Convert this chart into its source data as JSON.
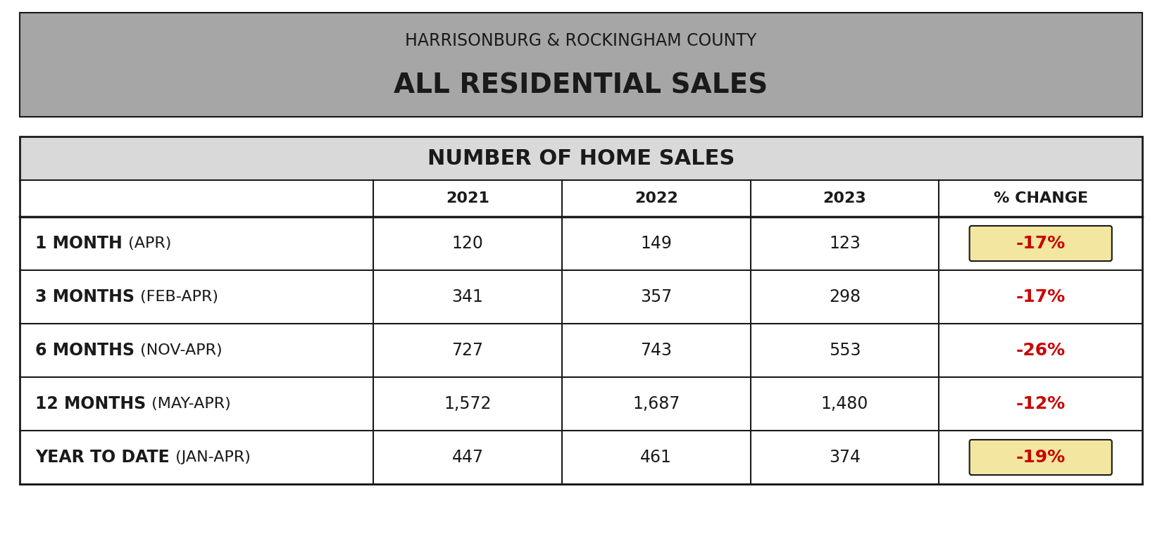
{
  "title_line1": "HARRISONBURG & ROCKINGHAM COUNTY",
  "title_line2": "ALL RESIDENTIAL SALES",
  "section_title": "NUMBER OF HOME SALES",
  "header_bg": "#a6a6a6",
  "section_header_bg": "#d9d9d9",
  "outer_bg": "#ffffff",
  "col_headers": [
    "",
    "2021",
    "2022",
    "2023",
    "% CHANGE"
  ],
  "rows": [
    {
      "label_bold": "1 MONTH",
      "label_normal": " (APR)",
      "v2021": "120",
      "v2022": "149",
      "v2023": "123",
      "change": "-17%",
      "highlight": true
    },
    {
      "label_bold": "3 MONTHS",
      "label_normal": " (FEB-APR)",
      "v2021": "341",
      "v2022": "357",
      "v2023": "298",
      "change": "-17%",
      "highlight": false
    },
    {
      "label_bold": "6 MONTHS",
      "label_normal": " (NOV-APR)",
      "v2021": "727",
      "v2022": "743",
      "v2023": "553",
      "change": "-26%",
      "highlight": false
    },
    {
      "label_bold": "12 MONTHS",
      "label_normal": " (MAY-APR)",
      "v2021": "1,572",
      "v2022": "1,687",
      "v2023": "1,480",
      "change": "-12%",
      "highlight": false
    },
    {
      "label_bold": "YEAR TO DATE",
      "label_normal": " (JAN-APR)",
      "v2021": "447",
      "v2022": "461",
      "v2023": "374",
      "change": "-19%",
      "highlight": true
    }
  ],
  "highlight_color": "#f2e6a0",
  "change_color": "#cc0000",
  "text_color": "#1a1a1a",
  "border_color": "#1a1a1a",
  "title_text_color": "#1a1a1a",
  "section_title_color": "#1a1a1a",
  "fig_width": 16.5,
  "fig_height": 7.76,
  "dpi": 100
}
